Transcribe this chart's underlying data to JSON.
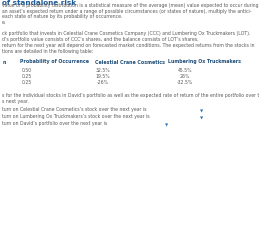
{
  "title": "of standalone risk",
  "title_color": "#1F5C99",
  "bg_color": "#FFFFFF",
  "body_text_color": "#5a5a5a",
  "para1": "value of a probability distribution is a statistical measure of the average (mean) value expected to occur during",
  "para2": "an asset’s expected return under a range of possible circumstances (or states of nature), multiply the antici-",
  "para3": "each state of nature by its probability of occurrence.",
  "label_example": "e:",
  "divider_color": "#C8A84B",
  "para4": "ck portfolio that invests in Celestial Crane Cosmetics Company (CCC) and Lumbering Ox Truckmakers (LOT).",
  "para5": "d’s portfolio value consists of CCC’s shares, and the balance consists of LOT’s shares.",
  "para6": "return for the next year will depend on forecasted market conditions. The expected returns from the stocks in",
  "para7": "tions are detailed in the following table:",
  "col_headers": [
    "n",
    "Probability of Occurrence",
    "Celestial Crane Cosmetics",
    "Lumbering Ox Truckmakers"
  ],
  "col_header_color": "#1F4E79",
  "table_rows": [
    [
      "0.50",
      "32.5%",
      "45.5%"
    ],
    [
      "0.25",
      "19.5%",
      "26%"
    ],
    [
      "0.25",
      "-26%",
      "-32.5%"
    ]
  ],
  "header_line_color": "#5a8ab0",
  "para8": "s for the individual stocks in David’s portfolio as well as the expected rate of return of the entire portfolio over t",
  "para9": "s next year.",
  "q1": "turn on Celestial Crane Cosmetics’s stock over the next year is",
  "q2": "turn on Lumbering Ox Truckmakers’s stock over the next year is",
  "q3": "turn on David’s portfolio over the next year is",
  "answer_line_color": "#2E75B6",
  "dropdown_color": "#2E75B6",
  "divider2_color": "#C8A84B"
}
